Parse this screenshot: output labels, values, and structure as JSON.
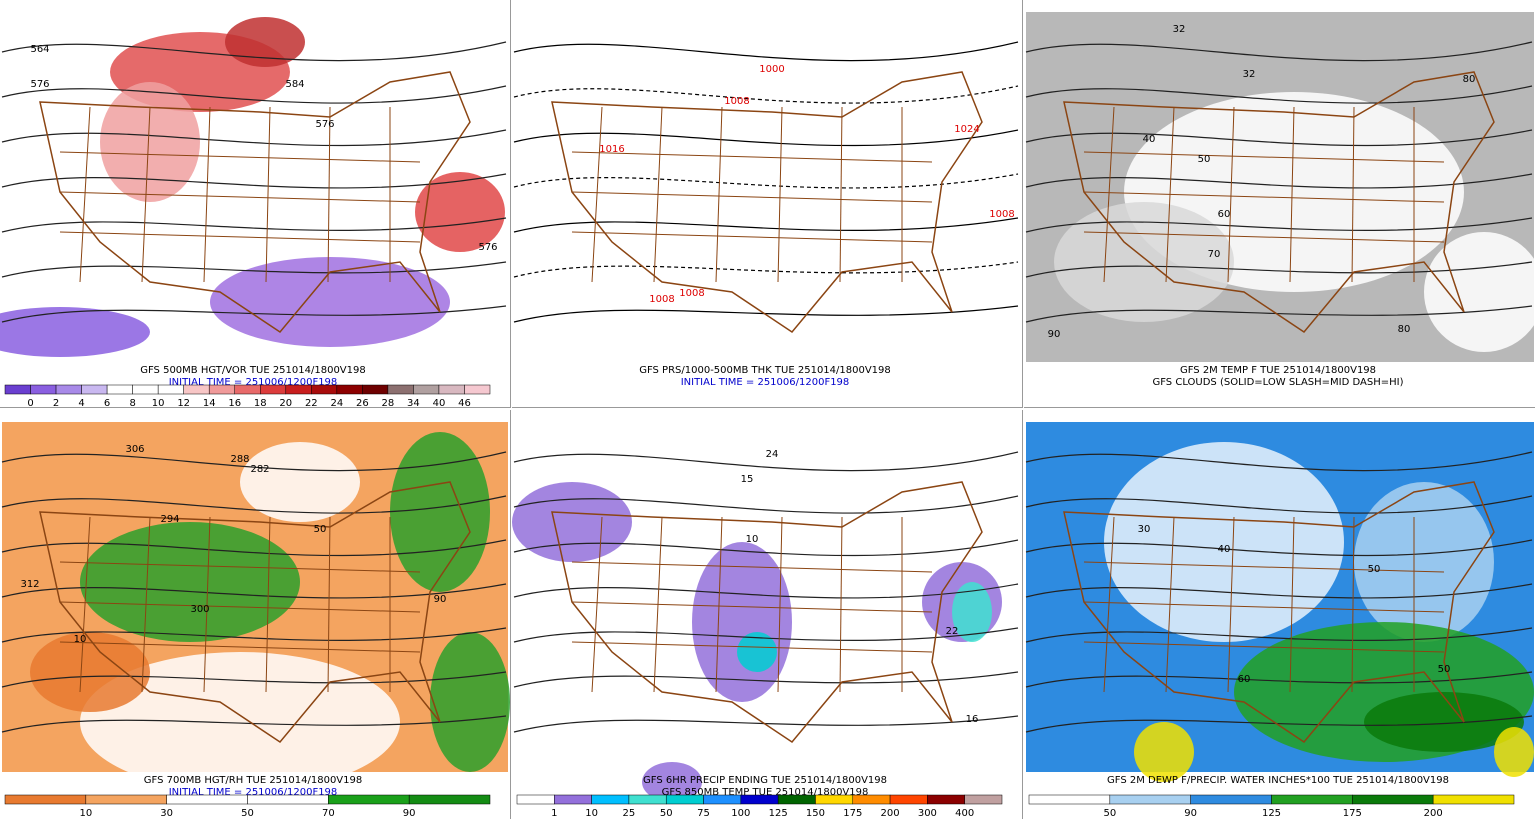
{
  "panels": [
    {
      "caption": [
        "GFS 500MB HGT/VOR TUE 251014/1800V198",
        "INITIAL TIME = 251006/1200F198"
      ],
      "map_labels": [
        "564",
        "576",
        "584",
        "576",
        "576"
      ],
      "colorbar": {
        "colors": [
          "#6a3fd0",
          "#8a5fe0",
          "#a88ae8",
          "#c9b8f0",
          "#ffffff",
          "#ffffff",
          "#ffffff",
          "#f7c6c6",
          "#f09a9a",
          "#e86a6a",
          "#dc3c3c",
          "#c81e1e",
          "#a80c0c",
          "#8c0000",
          "#6e0000",
          "#8c7070",
          "#b0a0a0",
          "#d8b8c0",
          "#f5c8d0"
        ],
        "labels": [
          "0",
          "2",
          "4",
          "6",
          "8",
          "10",
          "12",
          "14",
          "16",
          "18",
          "20",
          "22",
          "24",
          "26",
          "28",
          "34",
          "40",
          "46"
        ]
      }
    },
    {
      "caption": [
        "GFS PRS/1000-500MB THK TUE 251014/1800V198",
        "INITIAL TIME = 251006/1200F198"
      ],
      "map_labels": [
        "1000",
        "1008",
        "1016",
        "1024",
        "1008",
        "1008",
        "1008"
      ]
    },
    {
      "caption": [
        "GFS 2M TEMP F TUE 251014/1800V198",
        "GFS CLOUDS (SOLID=LOW SLASH=MID DASH=HI)"
      ],
      "map_labels": [
        "32",
        "32",
        "40",
        "50",
        "60",
        "70",
        "80",
        "80",
        "90"
      ]
    },
    {
      "caption": [
        "GFS 700MB HGT/RH TUE 251014/1800V198",
        "INITIAL TIME = 251006/1200F198"
      ],
      "map_labels": [
        "306",
        "312",
        "300",
        "294",
        "288",
        "282",
        "50",
        "10",
        "90"
      ],
      "colorbar": {
        "colors": [
          "#e87a30",
          "#f4a460",
          "#ffffff",
          "#ffffff",
          "#1aa01a",
          "#148c14"
        ],
        "labels": [
          "10",
          "30",
          "50",
          "70",
          "90"
        ]
      }
    },
    {
      "caption": [
        "GFS 6HR PRECIP ENDING TUE 251014/1800V198",
        "GFS 850MB TEMP TUE 251014/1800V198"
      ],
      "map_labels": [
        "24",
        "15",
        "22",
        "16",
        "10"
      ],
      "colorbar": {
        "colors": [
          "#ffffff",
          "#9370db",
          "#00bfff",
          "#40e0d0",
          "#00ced1",
          "#1e90ff",
          "#0000cd",
          "#006400",
          "#ffd700",
          "#ff8c00",
          "#ff4500",
          "#8b0000",
          "#c0a0a0"
        ],
        "labels": [
          "1",
          "10",
          "25",
          "50",
          "75",
          "100",
          "125",
          "150",
          "175",
          "200",
          "300",
          "400"
        ]
      }
    },
    {
      "caption": [
        "GFS 2M DEWP F/PRECIP. WATER INCHES*100 TUE 251014/1800V198"
      ],
      "map_labels": [
        "30",
        "40",
        "50",
        "60",
        "50"
      ],
      "colorbar": {
        "colors": [
          "#ffffff",
          "#a8d0f0",
          "#2e8be0",
          "#22a022",
          "#0a7a0a",
          "#f0e000"
        ],
        "labels": [
          "50",
          "90",
          "125",
          "175",
          "200"
        ]
      }
    }
  ]
}
